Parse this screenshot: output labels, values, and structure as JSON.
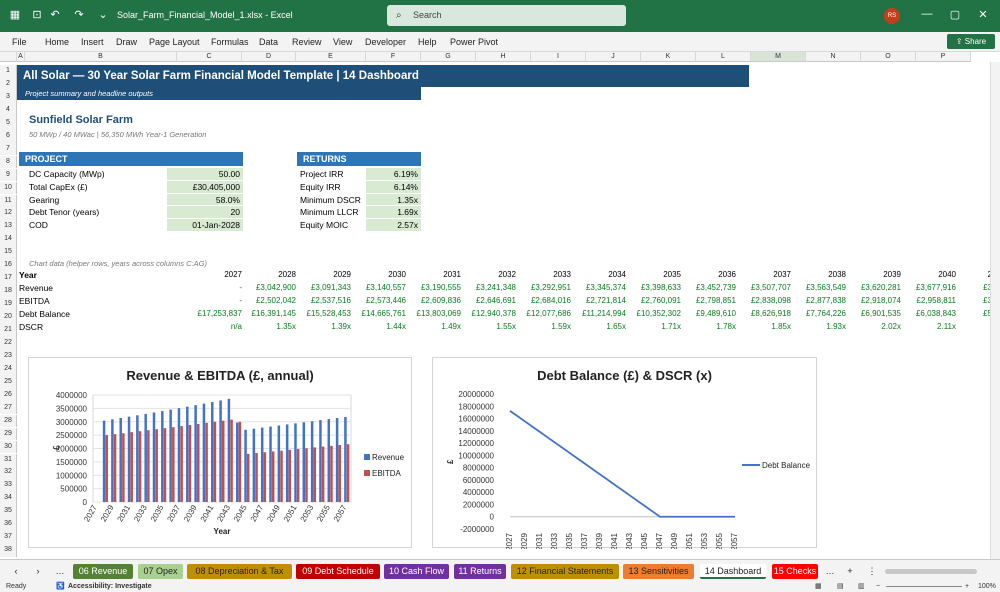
{
  "titlebar": {
    "filename": "Solar_Farm_Financial_Model_1.xlsx  -  Excel",
    "search_placeholder": "Search",
    "avatar": "RS"
  },
  "menu": [
    "File",
    "Home",
    "Insert",
    "Draw",
    "Page Layout",
    "Formulas",
    "Data",
    "Review",
    "View",
    "Developer",
    "Help",
    "Power Pivot"
  ],
  "share_label": "Share",
  "columns": [
    "A",
    "B",
    "C",
    "D",
    "E",
    "F",
    "G",
    "H",
    "I",
    "J",
    "K",
    "L",
    "M",
    "N",
    "O",
    "P"
  ],
  "rows": [
    "1",
    "2",
    "3",
    "4",
    "5",
    "6",
    "7",
    "8",
    "9",
    "10",
    "11",
    "12",
    "13",
    "14",
    "15",
    "16",
    "17",
    "18",
    "19",
    "20",
    "21",
    "22",
    "23",
    "24",
    "25",
    "26",
    "27",
    "28",
    "29",
    "30",
    "31",
    "32",
    "33",
    "34",
    "35",
    "36",
    "37",
    "38"
  ],
  "banner": {
    "title": "All Solar  —  30 Year Solar Farm Financial Model Template | 14 Dashboard",
    "subtitle": "Project summary and headline outputs"
  },
  "project_name": "Sunfield Solar Farm",
  "project_sub": "50 MWp / 40 MWac  |  56,350 MWh Year-1 Generation",
  "project": {
    "header": "PROJECT",
    "items": [
      {
        "label": "DC Capacity (MWp)",
        "value": "50.00"
      },
      {
        "label": "Total CapEx (£)",
        "value": "£30,405,000"
      },
      {
        "label": "Gearing",
        "value": "58.0%"
      },
      {
        "label": "Debt Tenor (years)",
        "value": "20"
      },
      {
        "label": "COD",
        "value": "01-Jan-2028"
      }
    ]
  },
  "returns": {
    "header": "RETURNS",
    "items": [
      {
        "label": "Project IRR",
        "value": "6.19%"
      },
      {
        "label": "Equity IRR",
        "value": "6.14%"
      },
      {
        "label": "Minimum DSCR",
        "value": "1.35x"
      },
      {
        "label": "Minimum LLCR",
        "value": "1.69x"
      },
      {
        "label": "Equity MOIC",
        "value": "2.57x"
      }
    ]
  },
  "chart_note": "Chart data (helper rows, years across columns C:AG)",
  "table": {
    "labels": [
      "Year",
      "Revenue",
      "EBITDA",
      "Debt Balance",
      "DSCR"
    ],
    "years": [
      "2027",
      "2028",
      "2029",
      "2030",
      "2031",
      "2032",
      "2033",
      "2034",
      "2035",
      "2036",
      "2037",
      "2038",
      "2039",
      "2040",
      "2"
    ],
    "revenue": [
      "-",
      "£3,042,900",
      "£3,091,343",
      "£3,140,557",
      "£3,190,555",
      "£3,241,348",
      "£3,292,951",
      "£3,345,374",
      "£3,398,633",
      "£3,452,739",
      "£3,507,707",
      "£3,563,549",
      "£3,620,281",
      "£3,677,916",
      "£3"
    ],
    "ebitda": [
      "-",
      "£2,502,042",
      "£2,537,516",
      "£2,573,446",
      "£2,609,836",
      "£2,646,691",
      "£2,684,016",
      "£2,721,814",
      "£2,760,091",
      "£2,798,851",
      "£2,838,098",
      "£2,877,838",
      "£2,918,074",
      "£2,958,811",
      "£3"
    ],
    "debt": [
      "£17,253,837",
      "£16,391,145",
      "£15,528,453",
      "£14,665,761",
      "£13,803,069",
      "£12,940,378",
      "£12,077,686",
      "£11,214,994",
      "£10,352,302",
      "£9,489,610",
      "£8,626,918",
      "£7,764,226",
      "£6,901,535",
      "£6,038,843",
      "£5"
    ],
    "dscr": [
      "n/a",
      "1.35x",
      "1.39x",
      "1.44x",
      "1.49x",
      "1.55x",
      "1.59x",
      "1.65x",
      "1.71x",
      "1.78x",
      "1.85x",
      "1.93x",
      "2.02x",
      "2.11x",
      ""
    ]
  },
  "colors": {
    "brand": "#217346",
    "banner": "#1f4e79",
    "section": "#2e75b6",
    "revenue": "#4472c4",
    "ebitda": "#c0504d"
  },
  "chart_data": [
    {
      "type": "bar",
      "title": "Revenue & EBITDA (£, annual)",
      "xlabel": "Year",
      "ylabel": "£",
      "ylim": [
        0,
        4000000
      ],
      "yticks": [
        "0",
        "500000",
        "1000000",
        "1500000",
        "2000000",
        "2500000",
        "3000000",
        "3500000",
        "4000000"
      ],
      "xticks": [
        "2027",
        "2029",
        "2031",
        "2033",
        "2035",
        "2037",
        "2039",
        "2041",
        "2043",
        "2045",
        "2047",
        "2049",
        "2051",
        "2053",
        "2055",
        "2057"
      ],
      "legend": "right",
      "categories": [
        "2027",
        "2028",
        "2029",
        "2030",
        "2031",
        "2032",
        "2033",
        "2034",
        "2035",
        "2036",
        "2037",
        "2038",
        "2039",
        "2040",
        "2041",
        "2042",
        "2043",
        "2044",
        "2045",
        "2046",
        "2047",
        "2048",
        "2049",
        "2050",
        "2051",
        "2052",
        "2053",
        "2054",
        "2055",
        "2056",
        "2057"
      ],
      "series": [
        {
          "name": "Revenue",
          "values": [
            0,
            3042900,
            3091343,
            3140557,
            3190555,
            3241348,
            3292951,
            3345374,
            3398633,
            3452739,
            3507707,
            3563549,
            3620281,
            3677916,
            3736470,
            3795960,
            3856400,
            2970000,
            2700000,
            2740000,
            2780000,
            2820000,
            2860000,
            2900000,
            2940000,
            2980000,
            3020000,
            3060000,
            3100000,
            3140000,
            3180000
          ]
        },
        {
          "name": "EBITDA",
          "values": [
            0,
            2502042,
            2537516,
            2573446,
            2609836,
            2646691,
            2684016,
            2721814,
            2760091,
            2798851,
            2838098,
            2877838,
            2918074,
            2958811,
            3000000,
            3040000,
            3080000,
            3000000,
            1800000,
            1830000,
            1860000,
            1890000,
            1920000,
            1950000,
            1980000,
            2010000,
            2040000,
            2070000,
            2100000,
            2130000,
            2160000
          ]
        }
      ]
    },
    {
      "type": "line",
      "title": "Debt Balance (£) & DSCR (x)",
      "ylabel": "£",
      "ylim": [
        -2000000,
        20000000
      ],
      "yticks": [
        "-2000000",
        "0",
        "2000000",
        "4000000",
        "6000000",
        "8000000",
        "10000000",
        "12000000",
        "14000000",
        "16000000",
        "18000000",
        "20000000"
      ],
      "xticks": [
        "2027",
        "2029",
        "2031",
        "2033",
        "2035",
        "2037",
        "2039",
        "2041",
        "2043",
        "2045",
        "2047",
        "2049",
        "2051",
        "2053",
        "2055",
        "2057"
      ],
      "legend": "right",
      "x": [
        "2027",
        "2028",
        "2029",
        "2030",
        "2031",
        "2032",
        "2033",
        "2034",
        "2035",
        "2036",
        "2037",
        "2038",
        "2039",
        "2040",
        "2041",
        "2042",
        "2043",
        "2044",
        "2045",
        "2046",
        "2047",
        "2048",
        "2049",
        "2050",
        "2051",
        "2052",
        "2053",
        "2054",
        "2055",
        "2056",
        "2057"
      ],
      "series": [
        {
          "name": "Debt Balance",
          "values": [
            17253837,
            16391145,
            15528453,
            14665761,
            13803069,
            12940378,
            12077686,
            11214994,
            10352302,
            9489610,
            8626918,
            7764226,
            6901535,
            6038843,
            5176151,
            4313459,
            3450767,
            2588075,
            1725384,
            862692,
            0,
            0,
            0,
            0,
            0,
            0,
            0,
            0,
            0,
            0,
            0
          ]
        }
      ]
    }
  ],
  "tabs": [
    {
      "label": "06 Revenue",
      "color": "#548235",
      "text": "#fff"
    },
    {
      "label": "07 Opex",
      "color": "#a9d08e",
      "text": "#222"
    },
    {
      "label": "08 Depreciation & Tax",
      "color": "#bf8f00",
      "text": "#222"
    },
    {
      "label": "09 Debt Schedule",
      "color": "#c00000",
      "text": "#fff"
    },
    {
      "label": "10 Cash Flow",
      "color": "#7030a0",
      "text": "#fff"
    },
    {
      "label": "11 Returns",
      "color": "#7030a0",
      "text": "#fff"
    },
    {
      "label": "12 Financial Statements",
      "color": "#bf8f00",
      "text": "#222"
    },
    {
      "label": "13 Sensitivities",
      "color": "#ed7d31",
      "text": "#222"
    },
    {
      "label": "14 Dashboard",
      "color": "#ffffff",
      "text": "#222"
    },
    {
      "label": "15 Checks",
      "color": "#ff0000",
      "text": "#fff"
    }
  ],
  "status": {
    "ready": "Ready",
    "accessibility": "Accessibility: Investigate",
    "zoom": "100%"
  }
}
